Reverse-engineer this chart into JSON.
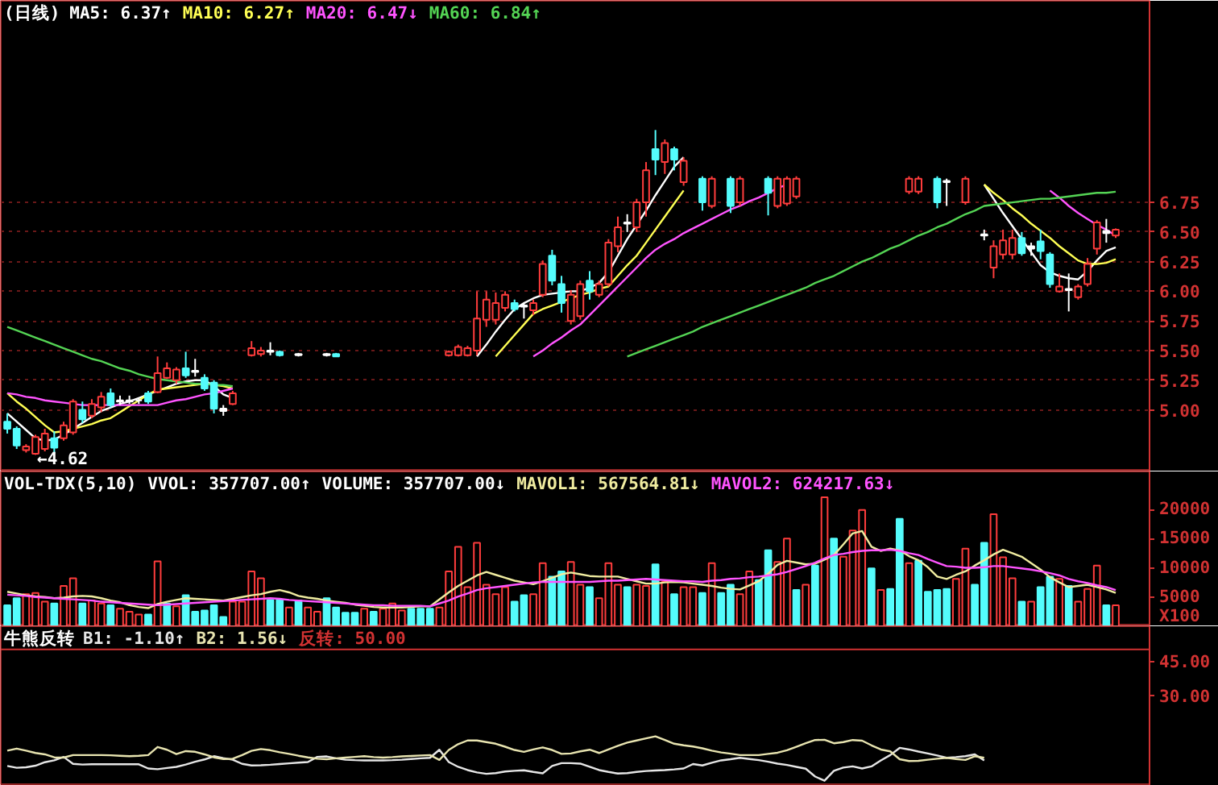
{
  "chart_data": [
    {
      "type": "candlestick",
      "title": "(日线)",
      "legend": "top left",
      "grid": "y",
      "tick_labels": "y",
      "categories": [
        null,
        null,
        null,
        null,
        null,
        null,
        null,
        null,
        null,
        null,
        null,
        null,
        null,
        null,
        null,
        null,
        null,
        null,
        null,
        null,
        null,
        null,
        null,
        null,
        null,
        null,
        null,
        null,
        null,
        null,
        null,
        null,
        null,
        null,
        null,
        null,
        null,
        null,
        null,
        null,
        null,
        null,
        null,
        null,
        null,
        null,
        null,
        null,
        null,
        null,
        null,
        null,
        null,
        null,
        null,
        null,
        null,
        null,
        null,
        null,
        null,
        null,
        null,
        null,
        null,
        null,
        null,
        null,
        null,
        null,
        null,
        null,
        null,
        null,
        null,
        null,
        null,
        null,
        null,
        null,
        null,
        null,
        null,
        null,
        null,
        null,
        null,
        null,
        null,
        null,
        null,
        null,
        null,
        null,
        null,
        null,
        null,
        null,
        null,
        null,
        null,
        null,
        null,
        null,
        null,
        null,
        null,
        null,
        null,
        null,
        null,
        null,
        null,
        null,
        null,
        null,
        null,
        null,
        null
      ],
      "ylim": [
        4.48,
        8.45
      ],
      "yticks": [
        {
          "value": 5,
          "label": "5.00"
        },
        5.25,
        {
          "value": 5.5,
          "label": "5.50"
        },
        5.75,
        {
          "value": 6,
          "label": "6.00"
        },
        6.25,
        {
          "value": 6.5,
          "label": "6.50"
        },
        6.75
      ],
      "annotations": [
        "←4.62"
      ],
      "ohlc": [
        [
          4.9,
          4.97,
          4.8,
          4.84
        ],
        [
          4.84,
          4.86,
          4.67,
          4.7
        ],
        [
          4.66,
          4.71,
          4.64,
          4.69
        ],
        [
          4.63,
          4.79,
          4.62,
          4.77
        ],
        [
          4.67,
          4.84,
          4.65,
          4.8
        ],
        [
          4.76,
          4.82,
          4.63,
          4.68
        ],
        [
          4.76,
          4.9,
          4.74,
          4.87
        ],
        [
          4.81,
          5.09,
          4.79,
          5.07
        ],
        [
          5.0,
          5.07,
          4.89,
          4.92
        ],
        [
          4.95,
          5.09,
          4.93,
          5.05
        ],
        [
          5.02,
          5.15,
          4.98,
          5.11
        ],
        [
          5.14,
          5.18,
          5.02,
          5.04
        ],
        [
          5.08,
          5.12,
          5.04,
          5.07
        ],
        [
          5.07,
          5.12,
          5.05,
          5.08
        ],
        [
          5.08,
          5.1,
          5.05,
          5.08
        ],
        [
          5.14,
          5.16,
          5.05,
          5.07
        ],
        [
          5.15,
          5.45,
          5.14,
          5.31
        ],
        [
          5.27,
          5.4,
          5.26,
          5.35
        ],
        [
          5.25,
          5.36,
          5.22,
          5.34
        ],
        [
          5.35,
          5.49,
          5.27,
          5.29
        ],
        [
          5.33,
          5.43,
          5.28,
          5.32
        ],
        [
          5.27,
          5.3,
          5.16,
          5.18
        ],
        [
          5.23,
          5.25,
          4.97,
          5.01
        ],
        [
          5.01,
          5.04,
          4.95,
          4.99
        ],
        [
          5.05,
          5.16,
          5.04,
          5.14
        ],
        null,
        [
          5.46,
          5.58,
          5.45,
          5.52
        ],
        [
          5.47,
          5.53,
          5.45,
          5.5
        ],
        [
          5.5,
          5.57,
          5.46,
          5.49
        ],
        [
          5.49,
          5.5,
          5.45,
          5.46
        ],
        null,
        [
          5.47,
          5.48,
          5.45,
          5.46
        ],
        null,
        null,
        [
          5.47,
          5.48,
          5.45,
          5.46
        ],
        [
          5.47,
          5.48,
          5.45,
          5.45
        ],
        null,
        null,
        null,
        null,
        null,
        null,
        null,
        null,
        null,
        null,
        null,
        [
          5.46,
          5.5,
          5.45,
          5.49
        ],
        [
          5.46,
          5.55,
          5.45,
          5.53
        ],
        [
          5.46,
          5.54,
          5.45,
          5.52
        ],
        [
          5.5,
          6.0,
          5.46,
          5.77
        ],
        [
          5.76,
          6.0,
          5.7,
          5.93
        ],
        [
          5.76,
          5.99,
          5.72,
          5.9
        ],
        [
          5.86,
          6.0,
          5.83,
          5.97
        ],
        [
          5.9,
          5.93,
          5.83,
          5.85
        ],
        [
          5.88,
          5.9,
          5.77,
          5.87
        ],
        [
          5.84,
          5.93,
          5.8,
          5.9
        ],
        [
          5.97,
          6.26,
          5.95,
          6.23
        ],
        [
          6.3,
          6.35,
          6.05,
          6.09
        ],
        [
          6.06,
          6.13,
          5.82,
          5.9
        ],
        [
          5.75,
          6.01,
          5.72,
          5.97
        ],
        [
          5.79,
          6.09,
          5.76,
          6.06
        ],
        [
          6.09,
          6.17,
          5.93,
          6.0
        ],
        [
          5.97,
          6.09,
          5.95,
          6.06
        ],
        [
          6.06,
          6.44,
          6.04,
          6.41
        ],
        [
          6.38,
          6.63,
          6.33,
          6.54
        ],
        [
          6.58,
          6.65,
          6.5,
          6.57
        ],
        [
          6.54,
          6.78,
          6.5,
          6.75
        ],
        [
          6.75,
          7.09,
          6.63,
          7.02
        ],
        [
          7.2,
          7.36,
          6.98,
          7.11
        ],
        [
          7.09,
          7.28,
          6.99,
          7.25
        ],
        [
          7.2,
          7.22,
          7.02,
          7.11
        ],
        [
          6.92,
          7.13,
          6.89,
          7.1
        ],
        null,
        [
          6.95,
          6.97,
          6.68,
          6.75
        ],
        [
          6.72,
          6.97,
          6.7,
          6.95
        ],
        null,
        [
          6.95,
          6.97,
          6.66,
          6.72
        ],
        [
          6.75,
          6.97,
          6.72,
          6.95
        ],
        null,
        null,
        [
          6.95,
          6.97,
          6.64,
          6.83
        ],
        [
          6.72,
          6.97,
          6.7,
          6.95
        ],
        [
          6.74,
          6.97,
          6.72,
          6.95
        ],
        [
          6.8,
          6.97,
          6.78,
          6.95
        ],
        null,
        null,
        null,
        null,
        null,
        null,
        null,
        null,
        null,
        null,
        null,
        [
          6.84,
          6.97,
          6.82,
          6.95
        ],
        [
          6.84,
          6.97,
          6.82,
          6.95
        ],
        null,
        [
          6.95,
          6.97,
          6.7,
          6.75
        ],
        [
          6.93,
          6.95,
          6.72,
          6.92
        ],
        null,
        [
          6.75,
          6.97,
          6.73,
          6.95
        ],
        null,
        [
          6.48,
          6.52,
          6.43,
          6.47
        ],
        [
          6.2,
          6.43,
          6.11,
          6.38
        ],
        [
          6.31,
          6.52,
          6.27,
          6.43
        ],
        [
          6.31,
          6.52,
          6.27,
          6.45
        ],
        [
          6.45,
          6.5,
          6.3,
          6.32
        ],
        [
          6.38,
          6.41,
          6.3,
          6.36
        ],
        [
          6.42,
          6.52,
          6.27,
          6.34
        ],
        [
          6.31,
          6.33,
          6.03,
          6.06
        ],
        [
          6.0,
          6.15,
          5.99,
          6.04
        ],
        [
          6.02,
          6.15,
          5.83,
          6.01
        ],
        [
          5.95,
          6.06,
          5.93,
          6.04
        ],
        [
          6.06,
          6.28,
          6.04,
          6.23
        ],
        [
          6.36,
          6.6,
          6.31,
          6.58
        ],
        [
          6.51,
          6.61,
          6.41,
          6.49
        ],
        [
          6.47,
          6.53,
          6.45,
          6.52
        ]
      ],
      "colors": [
        "#54fcfc",
        "#54fcfc",
        "#ff3c3c",
        "#ff3c3c",
        "#ff3c3c",
        "#54fcfc",
        "#ff3c3c",
        "#ff3c3c",
        "#54fcfc",
        "#ff3c3c",
        "#ff3c3c",
        "#54fcfc",
        "#ffffff",
        "#ffffff",
        "#ffffff",
        "#54fcfc",
        "#ff3c3c",
        "#ff3c3c",
        "#ff3c3c",
        "#54fcfc",
        "#ffffff",
        "#54fcfc",
        "#54fcfc",
        "#ffffff",
        "#ff3c3c",
        null,
        "#ff3c3c",
        "#ff3c3c",
        "#ffffff",
        "#54fcfc",
        null,
        "#ffffff",
        null,
        null,
        "#ffffff",
        "#54fcfc",
        null,
        null,
        null,
        null,
        null,
        null,
        null,
        null,
        null,
        null,
        null,
        "#ff3c3c",
        "#ff3c3c",
        "#ff3c3c",
        "#ff3c3c",
        "#ff3c3c",
        "#ff3c3c",
        "#ff3c3c",
        "#54fcfc",
        "#ffffff",
        "#ff3c3c",
        "#ff3c3c",
        "#54fcfc",
        "#54fcfc",
        "#ff3c3c",
        "#ff3c3c",
        "#54fcfc",
        "#ff3c3c",
        "#ff3c3c",
        "#ff3c3c",
        "#ffffff",
        "#ff3c3c",
        "#ff3c3c",
        "#54fcfc",
        "#ff3c3c",
        "#54fcfc",
        "#ff3c3c",
        null,
        "#54fcfc",
        "#ff3c3c",
        null,
        "#54fcfc",
        "#ff3c3c",
        null,
        null,
        "#54fcfc",
        "#ff3c3c",
        "#ff3c3c",
        "#ff3c3c",
        null,
        null,
        null,
        null,
        null,
        null,
        null,
        null,
        null,
        null,
        null,
        "#ff3c3c",
        "#ff3c3c",
        null,
        "#54fcfc",
        "#ffffff",
        null,
        "#ff3c3c",
        null,
        "#ffffff",
        "#ff3c3c",
        "#ff3c3c",
        "#ff3c3c",
        "#54fcfc",
        "#ffffff",
        "#54fcfc",
        "#54fcfc",
        "#ff3c3c",
        "#ffffff",
        "#ff3c3c",
        "#ff3c3c",
        "#ff3c3c",
        "#ffffff",
        "#ff3c3c"
      ],
      "series": [
        {
          "type": "line",
          "name": "MA5: 6.37↑",
          "color": "#ffffff",
          "values": [
            4.97,
            4.9,
            4.83,
            4.76,
            4.74,
            4.75,
            4.79,
            4.84,
            4.89,
            4.94,
            4.99,
            5.02,
            5.05,
            5.07,
            5.1,
            5.13,
            5.16,
            5.19,
            5.22,
            5.24,
            5.25,
            5.25,
            5.2,
            5.13,
            5.1,
            null,
            null,
            null,
            null,
            null,
            null,
            null,
            null,
            null,
            null,
            null,
            null,
            null,
            null,
            null,
            null,
            null,
            null,
            null,
            null,
            null,
            null,
            null,
            null,
            null,
            5.45,
            5.55,
            5.66,
            5.76,
            5.85,
            5.9,
            5.94,
            5.97,
            5.98,
            5.99,
            6.0,
            6.0,
            6.03,
            6.07,
            6.16,
            6.3,
            6.44,
            6.56,
            6.68,
            6.81,
            6.93,
            7.05,
            7.13,
            null,
            null,
            null,
            null,
            null,
            null,
            null,
            null,
            null,
            null,
            null,
            null,
            null,
            null,
            null,
            null,
            null,
            null,
            null,
            null,
            null,
            null,
            null,
            null,
            null,
            null,
            null,
            null,
            null,
            null,
            null,
            6.9,
            6.78,
            6.66,
            6.55,
            6.44,
            6.33,
            6.22,
            6.16,
            6.13,
            6.11,
            6.1,
            6.17,
            6.26,
            6.34,
            6.37
          ]
        },
        {
          "type": "line",
          "name": "MA10: 6.27↑",
          "color": "#ffff54",
          "values": [
            5.14,
            5.07,
            5.01,
            4.94,
            4.87,
            4.81,
            4.82,
            4.84,
            4.86,
            4.88,
            4.91,
            4.93,
            4.98,
            5.03,
            5.08,
            5.13,
            5.17,
            5.18,
            5.19,
            5.2,
            5.21,
            5.22,
            5.21,
            5.2,
            5.18,
            null,
            null,
            null,
            null,
            null,
            null,
            null,
            null,
            null,
            null,
            null,
            null,
            null,
            null,
            null,
            null,
            null,
            null,
            null,
            null,
            null,
            null,
            null,
            null,
            null,
            null,
            null,
            5.45,
            5.54,
            5.63,
            5.72,
            5.81,
            5.85,
            5.88,
            5.91,
            5.94,
            5.97,
            5.99,
            6.02,
            6.04,
            6.13,
            6.22,
            6.3,
            6.41,
            6.52,
            6.63,
            6.74,
            6.85,
            null,
            null,
            null,
            null,
            null,
            null,
            null,
            null,
            null,
            null,
            null,
            null,
            null,
            null,
            null,
            null,
            null,
            null,
            null,
            null,
            null,
            null,
            null,
            null,
            null,
            null,
            null,
            null,
            null,
            null,
            null,
            6.9,
            6.83,
            6.77,
            6.7,
            6.64,
            6.57,
            6.51,
            6.45,
            6.38,
            6.32,
            6.26,
            6.23,
            6.23,
            6.24,
            6.27
          ]
        },
        {
          "type": "line",
          "name": "MA20: 6.47↓",
          "color": "#ff54ff",
          "values": [
            5.14,
            5.13,
            5.11,
            5.1,
            5.08,
            5.07,
            5.06,
            5.05,
            5.04,
            5.04,
            5.04,
            5.04,
            5.04,
            5.04,
            5.04,
            5.04,
            5.04,
            5.06,
            5.08,
            5.09,
            5.11,
            5.13,
            5.14,
            5.16,
            5.18,
            null,
            null,
            null,
            null,
            null,
            null,
            null,
            null,
            null,
            null,
            null,
            null,
            null,
            null,
            null,
            null,
            null,
            null,
            null,
            null,
            null,
            null,
            null,
            null,
            null,
            null,
            null,
            null,
            null,
            null,
            null,
            5.45,
            5.5,
            5.56,
            5.61,
            5.67,
            5.72,
            5.8,
            5.88,
            5.96,
            6.04,
            6.12,
            6.2,
            6.28,
            6.35,
            6.4,
            6.44,
            6.49,
            6.53,
            6.57,
            6.61,
            6.65,
            6.69,
            6.72,
            6.76,
            6.79,
            6.83,
            6.87,
            6.9,
            null,
            null,
            null,
            null,
            null,
            null,
            null,
            null,
            null,
            null,
            null,
            null,
            null,
            null,
            null,
            null,
            null,
            null,
            null,
            null,
            null,
            null,
            null,
            null,
            null,
            null,
            null,
            6.85,
            6.79,
            6.72,
            6.66,
            6.61,
            6.56,
            6.52,
            6.47
          ]
        },
        {
          "type": "line",
          "name": "MA60: 6.84↑",
          "color": "#54d454",
          "values": [
            5.7,
            5.67,
            5.64,
            5.61,
            5.58,
            5.55,
            5.52,
            5.49,
            5.46,
            5.43,
            5.41,
            5.38,
            5.35,
            5.33,
            5.3,
            5.28,
            5.26,
            5.25,
            5.24,
            5.23,
            5.22,
            5.22,
            5.21,
            5.21,
            5.2,
            null,
            null,
            null,
            null,
            null,
            null,
            null,
            null,
            null,
            null,
            null,
            null,
            null,
            null,
            null,
            null,
            null,
            null,
            null,
            null,
            null,
            null,
            null,
            null,
            null,
            null,
            null,
            null,
            null,
            null,
            null,
            null,
            null,
            null,
            null,
            null,
            null,
            null,
            null,
            null,
            null,
            5.45,
            5.48,
            5.51,
            5.54,
            5.57,
            5.6,
            5.63,
            5.66,
            5.7,
            5.73,
            5.76,
            5.79,
            5.82,
            5.85,
            5.88,
            5.91,
            5.94,
            5.97,
            6.0,
            6.03,
            6.07,
            6.1,
            6.13,
            6.17,
            6.21,
            6.25,
            6.28,
            6.32,
            6.36,
            6.39,
            6.43,
            6.47,
            6.5,
            6.54,
            6.57,
            6.61,
            6.65,
            6.68,
            6.72,
            6.73,
            6.74,
            6.75,
            6.76,
            6.77,
            6.78,
            6.78,
            6.79,
            6.8,
            6.81,
            6.82,
            6.83,
            6.83,
            6.84
          ]
        }
      ]
    },
    {
      "type": "bar",
      "title": "VOL-TDX(5,10)",
      "legend": "top",
      "tick_labels": "y",
      "categories": [
        null,
        null,
        null,
        null,
        null,
        null,
        null,
        null,
        null,
        null,
        null,
        null,
        null,
        null,
        null,
        null,
        null,
        null,
        null,
        null,
        null,
        null,
        null,
        null,
        null,
        null,
        null,
        null,
        null,
        null,
        null,
        null,
        null,
        null,
        null,
        null,
        null,
        null,
        null,
        null,
        null,
        null,
        null,
        null,
        null,
        null,
        null,
        null,
        null,
        null,
        null,
        null,
        null,
        null,
        null,
        null,
        null,
        null,
        null,
        null,
        null,
        null,
        null,
        null,
        null,
        null,
        null,
        null,
        null,
        null,
        null,
        null,
        null,
        null,
        null,
        null,
        null,
        null,
        null,
        null,
        null,
        null,
        null,
        null,
        null,
        null,
        null,
        null,
        null,
        null,
        null,
        null,
        null,
        null,
        null,
        null,
        null,
        null,
        null,
        null,
        null,
        null,
        null,
        null,
        null,
        null,
        null,
        null,
        null,
        null,
        null,
        null,
        null,
        null,
        null,
        null,
        null,
        null,
        null
      ],
      "ylim": [
        0,
        26500
      ],
      "yticks": [
        {
          "value": 0,
          "label": "X100"
        },
        5000,
        10000,
        15000,
        20000
      ],
      "annotations": [
        "VVOL: 357707.00↑",
        "VOLUME: 357707.00↓"
      ],
      "series": [
        {
          "type": "bar",
          "values": [
            3600,
            4800,
            5500,
            5700,
            4200,
            3900,
            6900,
            8200,
            3900,
            4400,
            3900,
            3600,
            3000,
            2500,
            2000,
            2000,
            11100,
            3900,
            3400,
            5300,
            2500,
            2700,
            3600,
            1600,
            4200,
            4200,
            9400,
            8200,
            4500,
            4500,
            3200,
            4400,
            3200,
            2500,
            4800,
            3200,
            2300,
            2300,
            3000,
            2500,
            3000,
            3900,
            2700,
            3000,
            3000,
            3000,
            3200,
            9400,
            13600,
            6700,
            14300,
            7100,
            5500,
            6700,
            4200,
            5300,
            5500,
            10800,
            8500,
            9400,
            11000,
            7100,
            6700,
            4800,
            10800,
            7100,
            6700,
            7100,
            6900,
            10600,
            7600,
            5500,
            6700,
            6700,
            5700,
            10800,
            5700,
            7100,
            5500,
            9400,
            7900,
            13000,
            11000,
            15000,
            6200,
            7100,
            10400,
            22100,
            15000,
            11900,
            16400,
            19900,
            9900,
            6200,
            6400,
            18400,
            10800,
            11200,
            5900,
            6200,
            6400,
            8100,
            13300,
            7100,
            14300,
            19200,
            11800,
            8200,
            4200,
            4200,
            6700,
            8500,
            8100,
            6900,
            4200,
            6400,
            10400,
            3600,
            3600
          ],
          "colors": [
            "#54fcfc",
            "#54fcfc",
            "#ff3c3c",
            "#ff3c3c",
            "#ff3c3c",
            "#54fcfc",
            "#ff3c3c",
            "#ff3c3c",
            "#54fcfc",
            "#ff3c3c",
            "#ff3c3c",
            "#54fcfc",
            "#ff3c3c",
            "#ff3c3c",
            "#ff3c3c",
            "#54fcfc",
            "#ff3c3c",
            "#54fcfc",
            "#ff3c3c",
            "#54fcfc",
            "#54fcfc",
            "#54fcfc",
            "#54fcfc",
            "#54fcfc",
            "#ff3c3c",
            "#ff3c3c",
            "#ff3c3c",
            "#ff3c3c",
            "#54fcfc",
            "#54fcfc",
            "#ff3c3c",
            "#54fcfc",
            "#ff3c3c",
            "#ff3c3c",
            "#54fcfc",
            "#54fcfc",
            "#54fcfc",
            "#54fcfc",
            "#ff3c3c",
            "#54fcfc",
            "#ff3c3c",
            "#ff3c3c",
            "#ff3c3c",
            "#54fcfc",
            "#54fcfc",
            "#54fcfc",
            "#ff3c3c",
            "#ff3c3c",
            "#ff3c3c",
            "#ff3c3c",
            "#ff3c3c",
            "#ff3c3c",
            "#ff3c3c",
            "#ff3c3c",
            "#54fcfc",
            "#54fcfc",
            "#ff3c3c",
            "#ff3c3c",
            "#54fcfc",
            "#54fcfc",
            "#ff3c3c",
            "#ff3c3c",
            "#54fcfc",
            "#ff3c3c",
            "#ff3c3c",
            "#ff3c3c",
            "#54fcfc",
            "#ff3c3c",
            "#ff3c3c",
            "#54fcfc",
            "#ff3c3c",
            "#54fcfc",
            "#ff3c3c",
            "#ff3c3c",
            "#54fcfc",
            "#ff3c3c",
            "#54fcfc",
            "#54fcfc",
            "#ff3c3c",
            "#ff3c3c",
            "#54fcfc",
            "#54fcfc",
            "#ff3c3c",
            "#ff3c3c",
            "#54fcfc",
            "#ff3c3c",
            "#54fcfc",
            "#ff3c3c",
            "#54fcfc",
            "#ff3c3c",
            "#ff3c3c",
            "#ff3c3c",
            "#54fcfc",
            "#ff3c3c",
            "#54fcfc",
            "#54fcfc",
            "#ff3c3c",
            "#54fcfc",
            "#54fcfc",
            "#54fcfc",
            "#54fcfc",
            "#ff3c3c",
            "#ff3c3c",
            "#54fcfc",
            "#54fcfc",
            "#ff3c3c",
            "#ff3c3c",
            "#ff3c3c",
            "#54fcfc",
            "#ff3c3c",
            "#54fcfc",
            "#54fcfc",
            "#ff3c3c",
            "#54fcfc",
            "#ff3c3c",
            "#ff3c3c",
            "#ff3c3c",
            "#54fcfc",
            "#ff3c3c"
          ]
        },
        {
          "type": "line",
          "name": "MAVOL1: 567564.81↓",
          "color": "#f0eca0",
          "values": [
            5900,
            5600,
            5300,
            5100,
            5000,
            4800,
            4900,
            5100,
            5200,
            5100,
            4800,
            4400,
            4100,
            3600,
            3300,
            3100,
            3800,
            4200,
            4500,
            4800,
            4700,
            4600,
            4500,
            4400,
            4700,
            5000,
            5300,
            5500,
            5900,
            6200,
            5800,
            5200,
            4900,
            4700,
            4400,
            4200,
            4000,
            3700,
            3500,
            3300,
            3200,
            3200,
            3200,
            3300,
            3400,
            3400,
            4600,
            5800,
            6900,
            7800,
            8700,
            9300,
            8800,
            8300,
            7800,
            7500,
            7200,
            7700,
            8300,
            8900,
            9200,
            8900,
            8600,
            8500,
            8500,
            8500,
            8100,
            7700,
            7300,
            7300,
            7500,
            7600,
            7500,
            7300,
            7100,
            6900,
            6600,
            6400,
            6300,
            7000,
            7700,
            9000,
            10500,
            11200,
            10900,
            10600,
            10700,
            11400,
            12200,
            14000,
            15900,
            16300,
            13600,
            12900,
            13300,
            13000,
            12000,
            11300,
            10100,
            8500,
            8100,
            8800,
            9400,
            10400,
            11300,
            12300,
            13100,
            12500,
            11900,
            10800,
            9700,
            8400,
            7500,
            6700,
            6900,
            7100,
            6700,
            6300,
            5700
          ]
        },
        {
          "type": "line",
          "name": "MAVOL2: 624217.63↓",
          "color": "#ff54ff",
          "values": [
            5400,
            5300,
            5200,
            5000,
            4900,
            4800,
            4700,
            4600,
            4500,
            4400,
            4200,
            4100,
            4000,
            3900,
            3800,
            3700,
            3600,
            3700,
            3800,
            3900,
            4000,
            4100,
            4200,
            4300,
            4400,
            4500,
            4600,
            4700,
            4800,
            4700,
            4500,
            4400,
            4300,
            4200,
            4100,
            4000,
            3900,
            3800,
            3700,
            3600,
            3600,
            3500,
            3500,
            3500,
            3500,
            3400,
            3900,
            4400,
            5100,
            5600,
            6200,
            6500,
            6700,
            6900,
            7100,
            7300,
            7500,
            7600,
            7600,
            7600,
            7600,
            7600,
            7600,
            7700,
            7800,
            7800,
            7900,
            8000,
            8100,
            8000,
            7900,
            7800,
            7700,
            7700,
            7600,
            7800,
            7900,
            8100,
            8200,
            8400,
            8500,
            8700,
            8900,
            9300,
            9800,
            10300,
            10900,
            11600,
            12200,
            12400,
            12700,
            12900,
            13000,
            13000,
            13100,
            12900,
            12500,
            12200,
            11500,
            10900,
            10300,
            10200,
            10000,
            10000,
            10100,
            10300,
            10300,
            10100,
            9900,
            9700,
            9400,
            9100,
            8700,
            8100,
            7700,
            7400,
            7000,
            6700,
            6200
          ]
        }
      ]
    },
    {
      "type": "line",
      "title": "牛熊反转",
      "legend": "top left",
      "tick_labels": "y",
      "categories": [
        null,
        null,
        null,
        null,
        null,
        null,
        null,
        null,
        null,
        null,
        null,
        null,
        null,
        null,
        null,
        null,
        null,
        null,
        null,
        null,
        null,
        null,
        null,
        null,
        null,
        null,
        null,
        null,
        null,
        null,
        null,
        null,
        null,
        null,
        null,
        null,
        null,
        null,
        null,
        null,
        null,
        null,
        null,
        null,
        null,
        null,
        null,
        null,
        null,
        null,
        null,
        null,
        null,
        null,
        null,
        null,
        null,
        null,
        null,
        null,
        null,
        null,
        null,
        null,
        null,
        null,
        null,
        null,
        null,
        null,
        null,
        null,
        null,
        null,
        null,
        null,
        null,
        null,
        null,
        null,
        null,
        null,
        null,
        null,
        null,
        null,
        null,
        null,
        null,
        null,
        null,
        null,
        null,
        null,
        null,
        null,
        null,
        null,
        null,
        null,
        null,
        null,
        null,
        null,
        null,
        null,
        null,
        null,
        null,
        null,
        null,
        null,
        null,
        null,
        null,
        null,
        null,
        null,
        null
      ],
      "ylim": [
        -9,
        60
      ],
      "yticks": [
        {
          "value": 30,
          "label": "30.00"
        },
        {
          "value": 45,
          "label": "45.00"
        }
      ],
      "ref_lines": [
        {
          "axis": "y",
          "value": 50,
          "label": "反转: 50.00",
          "color": "#d23232"
        }
      ],
      "series": [
        {
          "name": "B1: -1.10↑",
          "color": "#e6e6e6",
          "values": [
            -0.4,
            -1.2,
            -1.0,
            -0.3,
            1.2,
            2.0,
            3.5,
            0.5,
            0.2,
            0.3,
            0.3,
            0.3,
            0.3,
            0.3,
            0.3,
            -1.5,
            -1.8,
            -1.3,
            -0.8,
            0.2,
            1.4,
            2.4,
            3.8,
            3.0,
            2.3,
            0.5,
            -0.2,
            -0.1,
            0.1,
            0.4,
            0.7,
            1.0,
            1.3,
            3.5,
            3.7,
            2.9,
            2.3,
            2.1,
            2.0,
            2.0,
            2.0,
            2.1,
            2.3,
            2.6,
            2.9,
            3.1,
            6.6,
            1.3,
            -0.8,
            -2.2,
            -3.2,
            -3.8,
            -3.5,
            -2.8,
            -2.5,
            -2.3,
            -3.0,
            -3.6,
            -0.4,
            0.8,
            0.8,
            0.6,
            -0.8,
            -2.2,
            -3.0,
            -3.7,
            -3.5,
            -3.0,
            -2.6,
            -2.4,
            -2.2,
            -1.9,
            -1.5,
            0.4,
            -0.2,
            1.0,
            2.0,
            2.5,
            3.1,
            2.6,
            2.1,
            1.4,
            0.6,
            0.0,
            -0.8,
            -1.6,
            -5.0,
            -6.8,
            -2.5,
            -1.1,
            -0.6,
            -1.5,
            -0.6,
            2.0,
            4.3,
            7.4,
            6.7,
            5.8,
            5.0,
            4.1,
            3.1,
            3.4,
            3.8,
            4.6,
            2.0,
            null,
            null,
            null,
            null,
            null,
            null,
            null,
            null,
            null,
            null,
            null,
            null,
            null,
            null
          ]
        },
        {
          "name": "B2: 1.56↓",
          "color": "#e8e4b0",
          "values": [
            6.2,
            7.1,
            6.2,
            5.2,
            4.6,
            3.3,
            3.2,
            4.3,
            4.3,
            4.3,
            4.3,
            4.2,
            4.0,
            3.8,
            4.0,
            4.3,
            7.8,
            6.6,
            4.7,
            6.0,
            5.7,
            4.6,
            3.3,
            2.6,
            2.7,
            4.3,
            6.1,
            6.9,
            6.4,
            5.5,
            4.8,
            4.0,
            3.3,
            2.7,
            2.5,
            2.9,
            3.2,
            3.5,
            3.8,
            3.4,
            3.2,
            3.4,
            3.7,
            3.9,
            4.1,
            4.3,
            2.2,
            6.5,
            9.0,
            10.6,
            10.6,
            9.9,
            9.2,
            7.9,
            6.5,
            5.7,
            6.7,
            7.6,
            6.5,
            4.8,
            5.0,
            5.9,
            6.6,
            5.2,
            6.7,
            8.3,
            9.7,
            10.6,
            11.5,
            12.4,
            10.8,
            9.2,
            8.5,
            8.0,
            7.2,
            6.2,
            5.4,
            4.9,
            4.3,
            4.3,
            4.3,
            4.8,
            5.3,
            6.4,
            7.9,
            9.4,
            10.8,
            10.9,
            9.4,
            9.9,
            10.8,
            10.5,
            8.5,
            6.7,
            5.9,
            2.5,
            1.7,
            1.8,
            2.3,
            2.7,
            3.1,
            2.6,
            2.2,
            3.8,
            3.1,
            null,
            null,
            null,
            null,
            null,
            null,
            null,
            null,
            null,
            null,
            null,
            null,
            null,
            null
          ]
        }
      ]
    }
  ]
}
